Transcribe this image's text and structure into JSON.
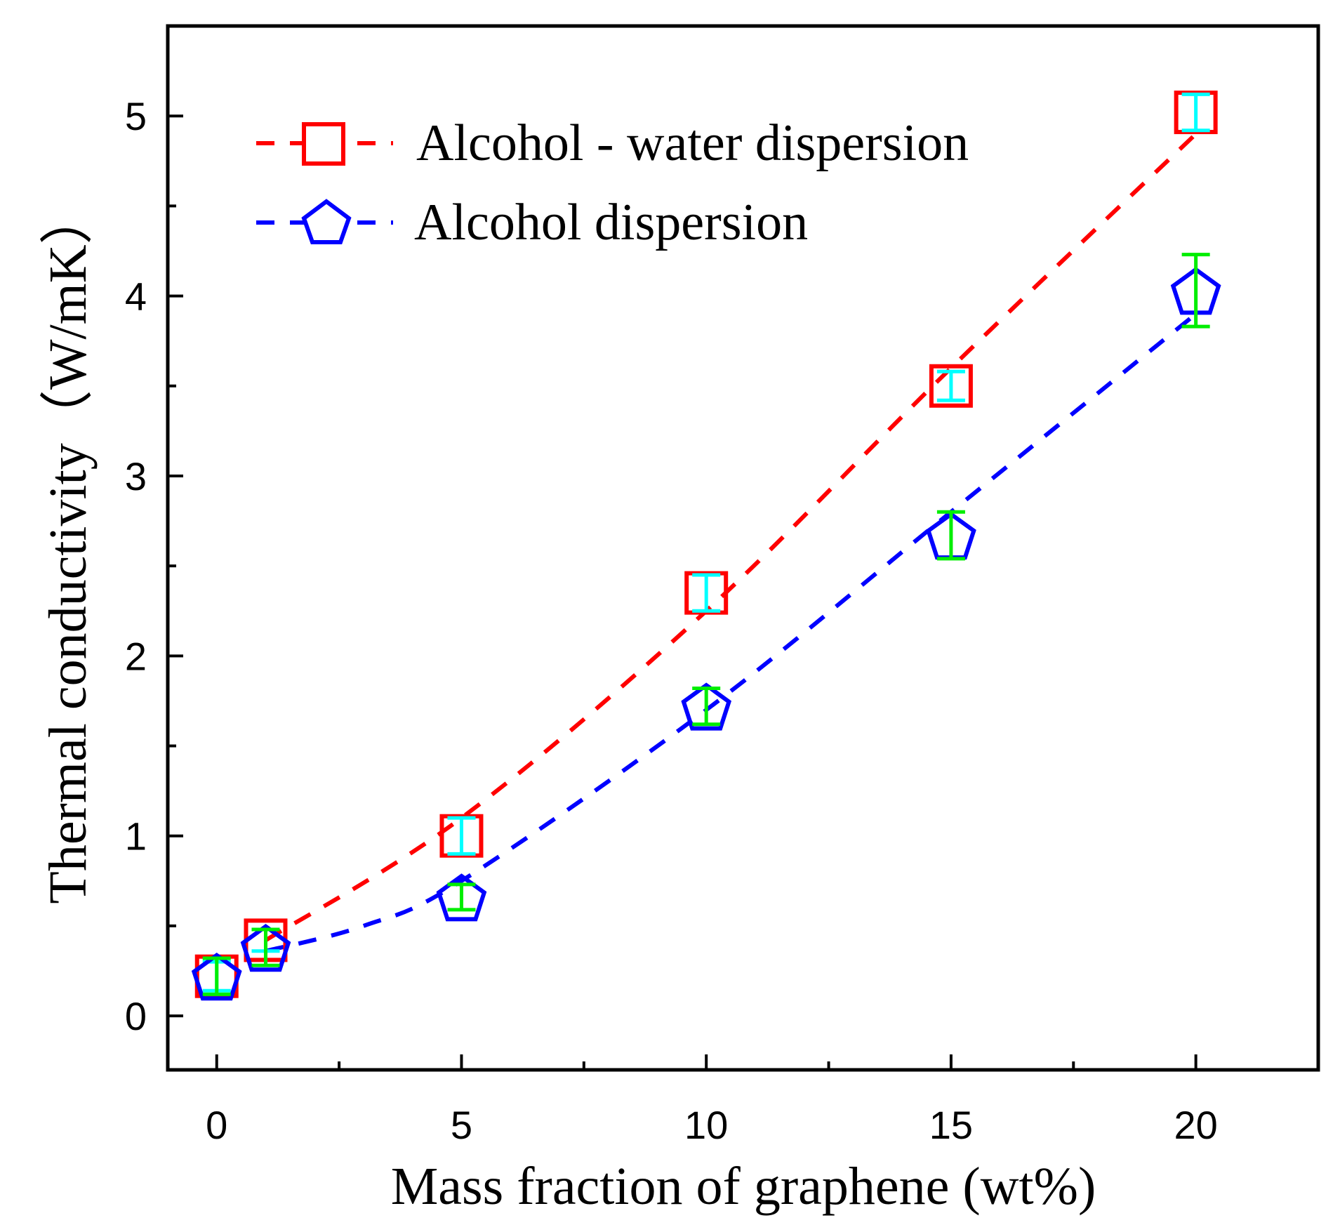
{
  "chart_data": {
    "type": "scatter",
    "title": "",
    "xlabel": "Mass fraction of graphene (wt%)",
    "ylabel": "Thermal conductivity（W/mK）",
    "xlim": [
      -1,
      22.5
    ],
    "ylim": [
      -0.3,
      5.5
    ],
    "xticks": [
      0,
      5,
      10,
      15,
      20
    ],
    "yticks": [
      0,
      1,
      2,
      3,
      4,
      5
    ],
    "grid": false,
    "legend_position": "top-left",
    "series": [
      {
        "name": "Alcohol - water dispersion",
        "color": "#ff0000",
        "marker": "square",
        "x": [
          0,
          1,
          5,
          10,
          15,
          20
        ],
        "y": [
          0.22,
          0.42,
          1.0,
          2.35,
          3.5,
          5.02
        ],
        "yerr": [
          0.08,
          0.06,
          0.1,
          0.1,
          0.08,
          0.1
        ],
        "fit_x": [
          1,
          5,
          10,
          15,
          20
        ],
        "fit_y": [
          0.42,
          1.1,
          2.25,
          3.6,
          4.9
        ]
      },
      {
        "name": "Alcohol dispersion",
        "color": "#0000ff",
        "marker": "pentagon",
        "x": [
          0,
          1,
          5,
          10,
          15,
          20
        ],
        "y": [
          0.22,
          0.38,
          0.66,
          1.72,
          2.67,
          4.03
        ],
        "yerr": [
          0.1,
          0.1,
          0.07,
          0.1,
          0.13,
          0.2
        ],
        "fit_x": [
          1,
          3,
          5,
          10,
          15,
          20
        ],
        "fit_y": [
          0.36,
          0.5,
          0.75,
          1.7,
          2.8,
          3.9
        ]
      }
    ]
  }
}
